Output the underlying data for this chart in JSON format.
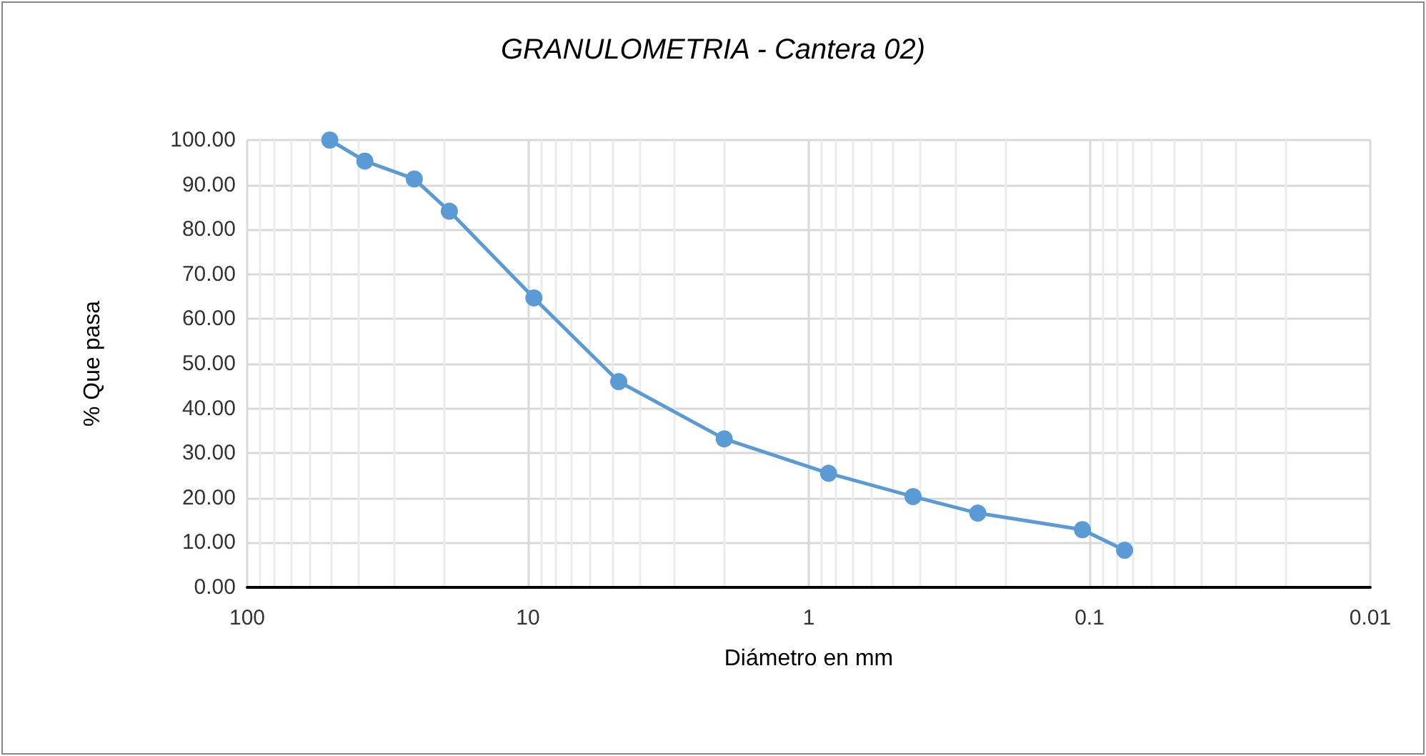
{
  "chart_data": {
    "type": "line",
    "title": "GRANULOMETRIA - Cantera 02)",
    "xlabel": "Diámetro en mm",
    "ylabel": "% Que pasa",
    "x": [
      50.8,
      38.1,
      25.4,
      19.05,
      9.525,
      4.75,
      2.0,
      0.85,
      0.425,
      0.25,
      0.106,
      0.075
    ],
    "series": [
      {
        "color": "#5b9bd5",
        "values": [
          100.0,
          95.3,
          91.3,
          84.1,
          64.7,
          46.0,
          33.2,
          25.5,
          20.3,
          16.6,
          12.9,
          8.3
        ]
      }
    ],
    "log": "x",
    "xlim": [
      100,
      0.01
    ],
    "xticks": [
      100,
      10,
      1,
      0.1,
      0.01
    ],
    "ylim": [
      0,
      100
    ],
    "yticks": [
      {
        "value": 0,
        "label": "0.00"
      },
      {
        "value": 10,
        "label": "10.00"
      },
      {
        "value": 20,
        "label": "20.00"
      },
      {
        "value": 30,
        "label": "30.00"
      },
      {
        "value": 40,
        "label": "40.00"
      },
      {
        "value": 50,
        "label": "50.00"
      },
      {
        "value": 60,
        "label": "60.00"
      },
      {
        "value": 70,
        "label": "70.00"
      },
      {
        "value": 80,
        "label": "80.00"
      },
      {
        "value": 90,
        "label": "90.00"
      },
      {
        "value": 100,
        "label": "100.00"
      }
    ],
    "grid": true,
    "marker": "circle",
    "line_style": "solid"
  }
}
